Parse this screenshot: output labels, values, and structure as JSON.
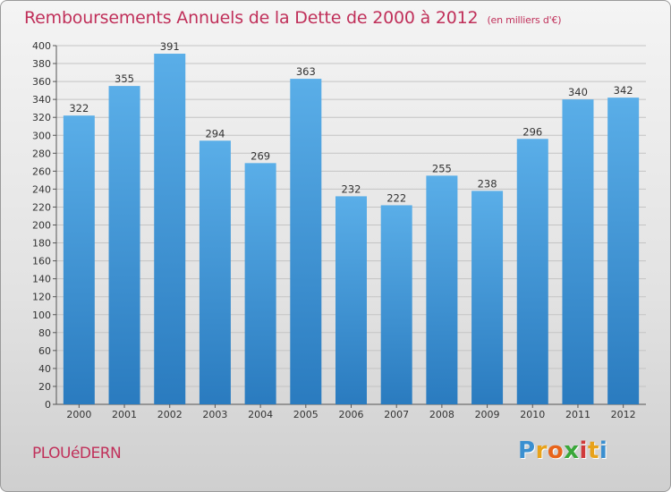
{
  "chart_data": {
    "type": "bar",
    "title": "Remboursements Annuels de la Dette de 2000 à 2012",
    "subtitle": "(en milliers d'€)",
    "categories": [
      "2000",
      "2001",
      "2002",
      "2003",
      "2004",
      "2005",
      "2006",
      "2007",
      "2008",
      "2009",
      "2010",
      "2011",
      "2012"
    ],
    "values": [
      322,
      355,
      391,
      294,
      269,
      363,
      232,
      222,
      255,
      238,
      296,
      340,
      342
    ],
    "ylim": [
      0,
      400
    ],
    "yticks": [
      0,
      20,
      40,
      60,
      80,
      100,
      120,
      140,
      160,
      180,
      200,
      220,
      240,
      260,
      280,
      300,
      320,
      340,
      360,
      380,
      400
    ],
    "grid": true,
    "bar_color_top": "#5aaee8",
    "bar_color_bottom": "#2a7bbf"
  },
  "commune": "PLOUéDERN",
  "logo": {
    "letters": [
      "P",
      "r",
      "o",
      "x",
      "i",
      "t",
      "i"
    ],
    "colors": [
      "#3a8fd0",
      "#e8a21a",
      "#e8641a",
      "#3aa83a",
      "#d03a3a",
      "#e8a21a",
      "#3a8fd0"
    ]
  }
}
